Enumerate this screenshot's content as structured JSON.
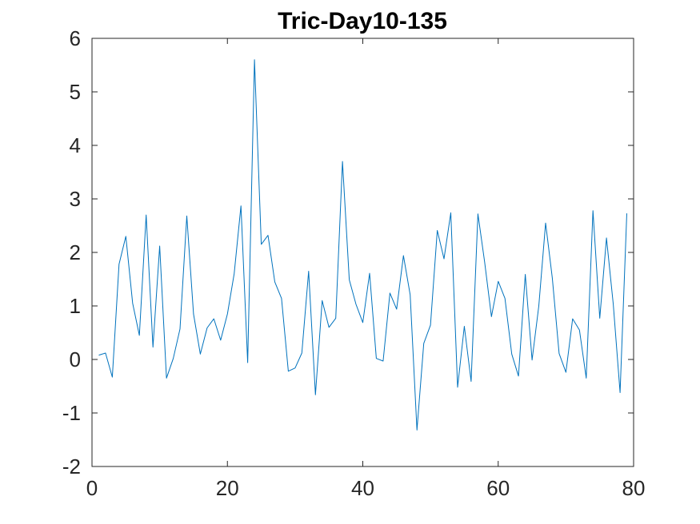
{
  "chart_data": {
    "type": "line",
    "title": "Tric-Day10-135",
    "xlabel": "",
    "ylabel": "",
    "xlim": [
      0,
      80
    ],
    "ylim": [
      -2,
      6
    ],
    "xticks": [
      0,
      20,
      40,
      60,
      80
    ],
    "yticks": [
      -2,
      -1,
      0,
      1,
      2,
      3,
      4,
      5,
      6
    ],
    "xtick_labels": [
      "0",
      "20",
      "40",
      "60",
      "80"
    ],
    "ytick_labels": [
      "-2",
      "-1",
      "0",
      "1",
      "2",
      "3",
      "4",
      "5",
      "6"
    ],
    "grid": false,
    "line_color": "#0072BD",
    "axis_color": "#262626",
    "series": [
      {
        "x": [
          1,
          2,
          3,
          4,
          5,
          6,
          7,
          8,
          9,
          10,
          11,
          12,
          13,
          14,
          15,
          16,
          17,
          18,
          19,
          20,
          21,
          22,
          23,
          24,
          25,
          26,
          27,
          28,
          29,
          30,
          31,
          32,
          33,
          34,
          35,
          36,
          37,
          38,
          39,
          40,
          41,
          42,
          43,
          44,
          45,
          46,
          47,
          48,
          49,
          50,
          51,
          52,
          53,
          54,
          55,
          56,
          57,
          58,
          59,
          60,
          61,
          62,
          63,
          64,
          65,
          66,
          67,
          68,
          69,
          70,
          71,
          72,
          73,
          74,
          75,
          76,
          77,
          78,
          79
        ],
        "values": [
          0.08,
          0.12,
          -0.33,
          1.78,
          2.3,
          1.05,
          0.45,
          2.7,
          0.23,
          2.12,
          -0.35,
          0.02,
          0.57,
          2.68,
          0.85,
          0.1,
          0.59,
          0.76,
          0.36,
          0.85,
          1.6,
          2.87,
          -0.06,
          5.6,
          2.15,
          2.32,
          1.45,
          1.14,
          -0.22,
          -0.16,
          0.12,
          1.65,
          -0.66,
          1.1,
          0.6,
          0.77,
          3.7,
          1.49,
          1.03,
          0.69,
          1.61,
          0.02,
          -0.03,
          1.24,
          0.94,
          1.94,
          1.21,
          -1.32,
          0.3,
          0.64,
          2.41,
          1.88,
          2.74,
          -0.52,
          0.62,
          -0.41,
          2.72,
          1.82,
          0.8,
          1.46,
          1.14,
          0.1,
          -0.31,
          1.59,
          -0.01,
          1.0,
          2.55,
          1.52,
          0.11,
          -0.24,
          0.76,
          0.55,
          -0.35,
          2.78,
          0.77,
          2.27,
          1.03,
          -0.62,
          2.73
        ]
      }
    ]
  }
}
